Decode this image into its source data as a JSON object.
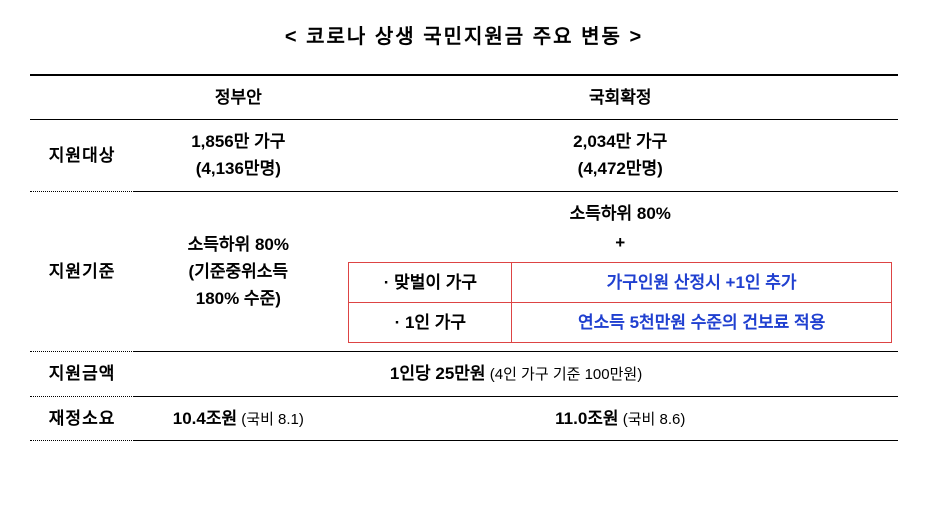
{
  "title": "< 코로나 상생 국민지원금 주요 변동 >",
  "headers": {
    "gov": "정부안",
    "assembly": "국회확정"
  },
  "rows": {
    "target": {
      "label": "지원대상",
      "gov_line1": "1,856만 가구",
      "gov_line2": "(4,136만명)",
      "assembly_line1": "2,034만 가구",
      "assembly_line2": "(4,472만명)"
    },
    "criteria": {
      "label": "지원기준",
      "gov_line1": "소득하위 80%",
      "gov_line2": "(기준중위소득",
      "gov_line3": "180% 수준)",
      "assembly_top": "소득하위 80%",
      "plus": "+",
      "sub1_label": "· 맞벌이 가구",
      "sub1_value": "가구인원 산정시 +1인 추가",
      "sub2_label": "· 1인 가구",
      "sub2_value": "연소득 5천만원 수준의 건보료 적용"
    },
    "amount": {
      "label": "지원금액",
      "value_main": "1인당 25만원",
      "value_note": " (4인 가구 기준 100만원)"
    },
    "cost": {
      "label": "재정소요",
      "gov_main": "10.4조원",
      "gov_note": " (국비 8.1)",
      "assembly_main": "11.0조원",
      "assembly_note": " (국비 8.6)"
    }
  }
}
